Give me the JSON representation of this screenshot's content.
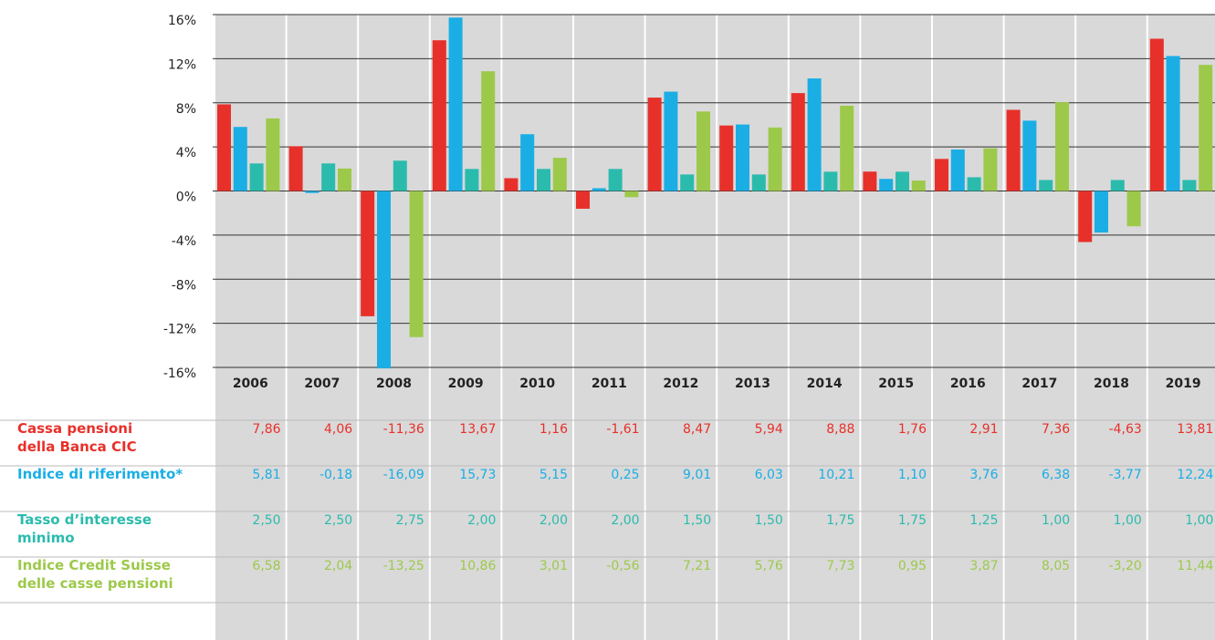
{
  "chart_data": {
    "type": "bar",
    "categories": [
      "2006",
      "2007",
      "2008",
      "2009",
      "2010",
      "2011",
      "2012",
      "2013",
      "2014",
      "2015",
      "2016",
      "2017",
      "2018",
      "2019"
    ],
    "ylim": [
      -16,
      16
    ],
    "yticks": [
      {
        "value": -16,
        "label": "-16%"
      },
      {
        "value": -12,
        "label": "-12%"
      },
      {
        "value": -8,
        "label": "-8%"
      },
      {
        "value": -4,
        "label": "-4%"
      },
      {
        "value": 0,
        "label": "0%"
      },
      {
        "value": 4,
        "label": "4%"
      },
      {
        "value": 8,
        "label": "8%"
      },
      {
        "value": 12,
        "label": "12%"
      },
      {
        "value": 16,
        "label": "16%"
      }
    ],
    "grid": true,
    "series": [
      {
        "name": "Cassa pensioni\ndella Banca CIC",
        "color": "#e8302a",
        "values": [
          7.86,
          4.06,
          -11.36,
          13.67,
          1.16,
          -1.61,
          8.47,
          5.94,
          8.88,
          1.76,
          2.91,
          7.36,
          -4.63,
          13.81
        ],
        "value_labels": [
          "7,86",
          "4,06",
          "-11,36",
          "13,67",
          "1,16",
          "-1,61",
          "8,47",
          "5,94",
          "8,88",
          "1,76",
          "2,91",
          "7,36",
          "-4,63",
          "13,81"
        ]
      },
      {
        "name": "Indice di riferimento*",
        "color": "#1aaee5",
        "values": [
          5.81,
          -0.18,
          -16.09,
          15.73,
          5.15,
          0.25,
          9.01,
          6.03,
          10.21,
          1.1,
          3.76,
          6.38,
          -3.77,
          12.24
        ],
        "value_labels": [
          "5,81",
          "-0,18",
          "-16,09",
          "15,73",
          "5,15",
          "0,25",
          "9,01",
          "6,03",
          "10,21",
          "1,10",
          "3,76",
          "6,38",
          "-3,77",
          "12,24"
        ]
      },
      {
        "name": "Tasso d’interesse\nminimo",
        "color": "#2bbbad",
        "values": [
          2.5,
          2.5,
          2.75,
          2.0,
          2.0,
          2.0,
          1.5,
          1.5,
          1.75,
          1.75,
          1.25,
          1.0,
          1.0,
          1.0
        ],
        "value_labels": [
          "2,50",
          "2,50",
          "2,75",
          "2,00",
          "2,00",
          "2,00",
          "1,50",
          "1,50",
          "1,75",
          "1,75",
          "1,25",
          "1,00",
          "1,00",
          "1,00"
        ]
      },
      {
        "name": "Indice Credit Suisse\ndelle casse pensioni",
        "color": "#9dc94a",
        "values": [
          6.58,
          2.04,
          -13.25,
          10.86,
          3.01,
          -0.56,
          7.21,
          5.76,
          7.73,
          0.95,
          3.87,
          8.05,
          -3.2,
          11.44
        ],
        "value_labels": [
          "6,58",
          "2,04",
          "-13,25",
          "10,86",
          "3,01",
          "-0,56",
          "7,21",
          "5,76",
          "7,73",
          "0,95",
          "3,87",
          "8,05",
          "-3,20",
          "11,44"
        ]
      }
    ]
  }
}
